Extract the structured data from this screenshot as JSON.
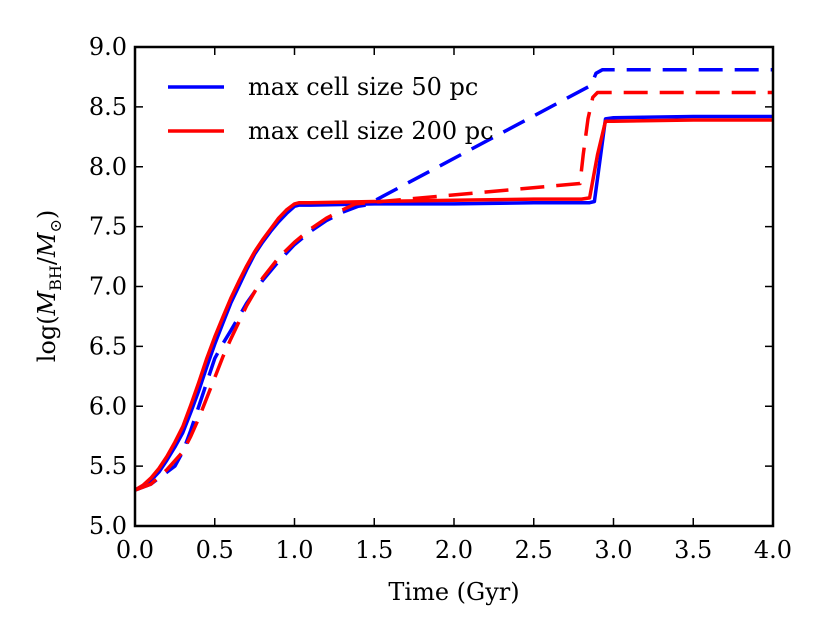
{
  "chart_data": {
    "type": "line",
    "title": "",
    "xlabel": "Time (Gyr)",
    "ylabel_parts": {
      "prefix": "log(",
      "m": "M",
      "sub_bh": "BH",
      "slash": "/",
      "m2": "M",
      "sub_sun": "⊙",
      "suffix": ")"
    },
    "xlim": [
      0.0,
      4.0
    ],
    "ylim": [
      5.0,
      9.0
    ],
    "xticks": [
      "0.0",
      "0.5",
      "1.0",
      "1.5",
      "2.0",
      "2.5",
      "3.0",
      "3.5",
      "4.0"
    ],
    "yticks": [
      "5.0",
      "5.5",
      "6.0",
      "6.5",
      "7.0",
      "7.5",
      "8.0",
      "8.5",
      "9.0"
    ],
    "legend": {
      "placement": "top-left",
      "entries": [
        "max cell size 50 pc",
        "max cell size 200 pc"
      ]
    },
    "series": [
      {
        "name": "max cell size 50 pc (solid)",
        "color": "#0000ff",
        "dashed": false,
        "x": [
          0.0,
          0.05,
          0.1,
          0.15,
          0.2,
          0.25,
          0.3,
          0.35,
          0.4,
          0.45,
          0.5,
          0.55,
          0.6,
          0.65,
          0.7,
          0.75,
          0.8,
          0.85,
          0.9,
          0.95,
          1.0,
          1.03,
          1.1,
          1.5,
          2.0,
          2.5,
          2.85,
          2.88,
          2.92,
          2.95,
          3.0,
          3.5,
          4.0
        ],
        "y": [
          5.3,
          5.33,
          5.38,
          5.45,
          5.55,
          5.66,
          5.78,
          5.95,
          6.13,
          6.33,
          6.52,
          6.69,
          6.86,
          7.0,
          7.14,
          7.27,
          7.37,
          7.46,
          7.54,
          7.61,
          7.67,
          7.68,
          7.68,
          7.69,
          7.69,
          7.7,
          7.7,
          7.71,
          8.1,
          8.4,
          8.41,
          8.42,
          8.42
        ]
      },
      {
        "name": "max cell size 200 pc (solid)",
        "color": "#ff0000",
        "dashed": false,
        "x": [
          0.0,
          0.05,
          0.1,
          0.15,
          0.2,
          0.25,
          0.3,
          0.35,
          0.4,
          0.45,
          0.5,
          0.55,
          0.6,
          0.65,
          0.7,
          0.75,
          0.8,
          0.85,
          0.9,
          0.95,
          1.0,
          1.03,
          1.1,
          1.5,
          2.0,
          2.5,
          2.8,
          2.85,
          2.9,
          2.95,
          3.0,
          3.5,
          4.0
        ],
        "y": [
          5.3,
          5.34,
          5.4,
          5.48,
          5.58,
          5.7,
          5.83,
          6.01,
          6.2,
          6.4,
          6.58,
          6.74,
          6.9,
          7.04,
          7.17,
          7.29,
          7.39,
          7.48,
          7.57,
          7.64,
          7.69,
          7.7,
          7.7,
          7.71,
          7.72,
          7.73,
          7.73,
          7.74,
          8.1,
          8.38,
          8.38,
          8.39,
          8.39
        ]
      },
      {
        "name": "max cell size 50 pc (dashed)",
        "color": "#0000ff",
        "dashed": true,
        "x": [
          0.0,
          0.1,
          0.2,
          0.25,
          0.3,
          0.35,
          0.4,
          0.45,
          0.5,
          0.55,
          0.6,
          0.7,
          0.8,
          0.9,
          1.0,
          1.1,
          1.2,
          1.3,
          1.4,
          1.45,
          2.86,
          2.89,
          2.93,
          2.95,
          4.0
        ],
        "y": [
          5.3,
          5.35,
          5.45,
          5.5,
          5.62,
          5.8,
          6.0,
          6.2,
          6.4,
          6.52,
          6.63,
          6.86,
          7.05,
          7.21,
          7.35,
          7.46,
          7.55,
          7.62,
          7.67,
          7.68,
          8.68,
          8.78,
          8.81,
          8.81,
          8.81
        ]
      },
      {
        "name": "max cell size 200 pc (dashed)",
        "color": "#ff0000",
        "dashed": true,
        "x": [
          0.0,
          0.1,
          0.2,
          0.3,
          0.35,
          0.4,
          0.45,
          0.5,
          0.55,
          0.6,
          0.7,
          0.8,
          0.9,
          1.0,
          1.1,
          1.2,
          1.3,
          1.38,
          2.79,
          2.81,
          2.84,
          2.87,
          2.9,
          4.0
        ],
        "y": [
          5.3,
          5.35,
          5.47,
          5.62,
          5.75,
          5.9,
          6.07,
          6.24,
          6.41,
          6.56,
          6.84,
          7.07,
          7.24,
          7.37,
          7.48,
          7.57,
          7.64,
          7.69,
          7.86,
          8.1,
          8.4,
          8.58,
          8.62,
          8.62
        ]
      }
    ]
  }
}
